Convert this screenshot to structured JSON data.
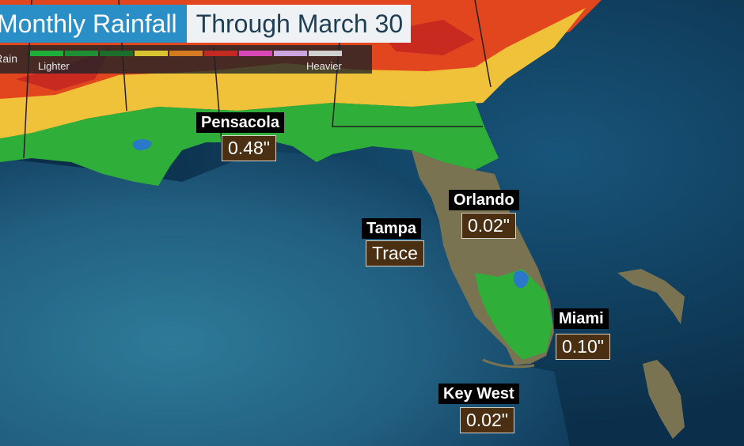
{
  "title": {
    "main": "Monthly Rainfall",
    "sub": "Through March 30"
  },
  "legend": {
    "label": "Rain",
    "low_label": "Lighter",
    "high_label": "Heavier",
    "colors": [
      "#1fae3a",
      "#1f8f33",
      "#1b6f2b",
      "#d9c331",
      "#d47a20",
      "#c12a21",
      "#d948b8",
      "#c9a6df",
      "#d0d0d0"
    ]
  },
  "cities": [
    {
      "name": "Pensacola",
      "value": "0.48\""
    },
    {
      "name": "Orlando",
      "value": "0.02\""
    },
    {
      "name": "Tampa",
      "value": "Trace"
    },
    {
      "name": "Miami",
      "value": "0.10\""
    },
    {
      "name": "Key West",
      "value": "0.02\""
    }
  ],
  "colors": {
    "ocean_deep": "#0d3c5d",
    "ocean_gulf": "#2a6f8c",
    "land_dry": "#7a7352",
    "rain_light": "#2fae3a",
    "rain_moderate": "#f0c23a",
    "rain_heavy": "#e2461e",
    "title_blue": "#2b8fc7"
  }
}
